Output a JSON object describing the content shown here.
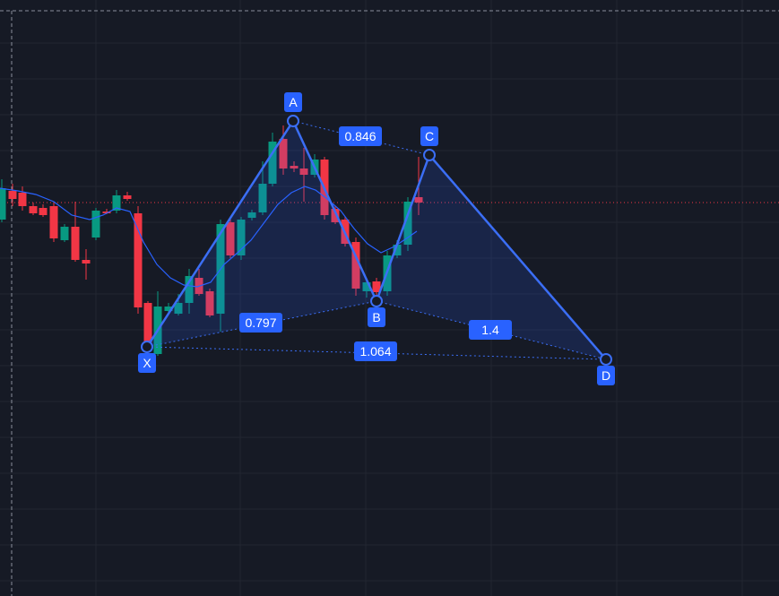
{
  "pattern": {
    "points": [
      "X",
      "A",
      "B",
      "C",
      "D"
    ],
    "ratios": [
      0.846,
      0.797,
      1.4,
      1.064
    ]
  }
}
